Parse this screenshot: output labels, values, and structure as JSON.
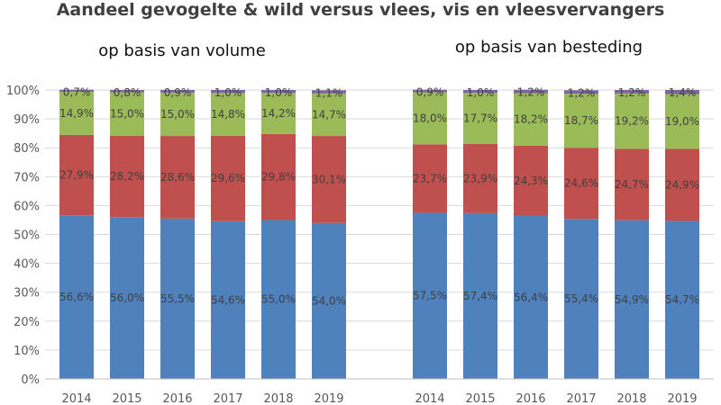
{
  "chart_data": {
    "type": "bar",
    "stacked": true,
    "title": "Aandeel gevogelte & wild versus vlees, vis en vleesvervangers",
    "yticks": [
      "0%",
      "10%",
      "20%",
      "30%",
      "40%",
      "50%",
      "60%",
      "70%",
      "80%",
      "90%",
      "100%"
    ],
    "ylim": [
      0,
      100
    ],
    "grid": true,
    "series_colors": [
      "#4f81bd",
      "#c0504d",
      "#9bbb59",
      "#8064a2"
    ],
    "panels": [
      {
        "subtitle": "op basis van volume",
        "categories": [
          "2014",
          "2015",
          "2016",
          "2017",
          "2018",
          "2019"
        ],
        "series": [
          {
            "values": [
              56.6,
              56.0,
              55.5,
              54.6,
              55.0,
              54.0
            ],
            "labels": [
              "56,6%",
              "56,0%",
              "55,5%",
              "54,6%",
              "55,0%",
              "54,0%"
            ]
          },
          {
            "values": [
              27.9,
              28.2,
              28.6,
              29.6,
              29.8,
              30.1
            ],
            "labels": [
              "27,9%",
              "28,2%",
              "28,6%",
              "29,6%",
              "29,8%",
              "30,1%"
            ]
          },
          {
            "values": [
              14.9,
              15.0,
              15.0,
              14.8,
              14.2,
              14.7
            ],
            "labels": [
              "14,9%",
              "15,0%",
              "15,0%",
              "14,8%",
              "14,2%",
              "14,7%"
            ]
          },
          {
            "values": [
              0.7,
              0.8,
              0.9,
              1.0,
              1.0,
              1.1
            ],
            "labels": [
              "0,7%",
              "0,8%",
              "0,9%",
              "1,0%",
              "1,0%",
              "1,1%"
            ]
          }
        ]
      },
      {
        "subtitle": "op basis van besteding",
        "categories": [
          "2014",
          "2015",
          "2016",
          "2017",
          "2018",
          "2019"
        ],
        "series": [
          {
            "values": [
              57.5,
              57.4,
              56.4,
              55.4,
              54.9,
              54.7
            ],
            "labels": [
              "57,5%",
              "57,4%",
              "56,4%",
              "55,4%",
              "54,9%",
              "54,7%"
            ]
          },
          {
            "values": [
              23.7,
              23.9,
              24.3,
              24.6,
              24.7,
              24.9
            ],
            "labels": [
              "23,7%",
              "23,9%",
              "24,3%",
              "24,6%",
              "24,7%",
              "24,9%"
            ]
          },
          {
            "values": [
              18.0,
              17.7,
              18.2,
              18.7,
              19.2,
              19.0
            ],
            "labels": [
              "18,0%",
              "17,7%",
              "18,2%",
              "18,7%",
              "19,2%",
              "19,0%"
            ]
          },
          {
            "values": [
              0.9,
              1.0,
              1.2,
              1.2,
              1.2,
              1.4
            ],
            "labels": [
              "0,9%",
              "1,0%",
              "1,2%",
              "1,2%",
              "1,2%",
              "1,4%"
            ]
          }
        ]
      }
    ]
  }
}
